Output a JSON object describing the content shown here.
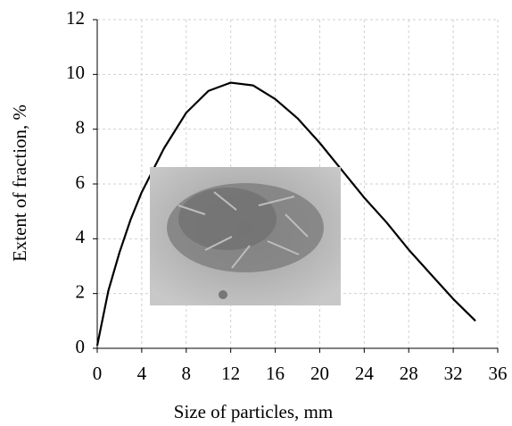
{
  "chart_data": {
    "type": "line",
    "x_label": "Size of particles, mm",
    "y_label": "Extent of fraction, %",
    "x": [
      0,
      1,
      2,
      3,
      4,
      6,
      8,
      10,
      12,
      14,
      16,
      18,
      20,
      22,
      24,
      26,
      28,
      30,
      32,
      34
    ],
    "values": [
      0.1,
      2.1,
      3.5,
      4.7,
      5.7,
      7.3,
      8.6,
      9.4,
      9.7,
      9.6,
      9.1,
      8.4,
      7.5,
      6.5,
      5.5,
      4.6,
      3.6,
      2.7,
      1.8,
      1.0
    ],
    "color": "#000000",
    "xlim": [
      0,
      36
    ],
    "xticks": [
      0,
      4,
      8,
      12,
      16,
      20,
      24,
      28,
      32,
      36
    ],
    "ylim": [
      0,
      12
    ],
    "yticks": [
      0,
      2,
      4,
      6,
      8,
      10,
      12
    ],
    "grid": true
  }
}
